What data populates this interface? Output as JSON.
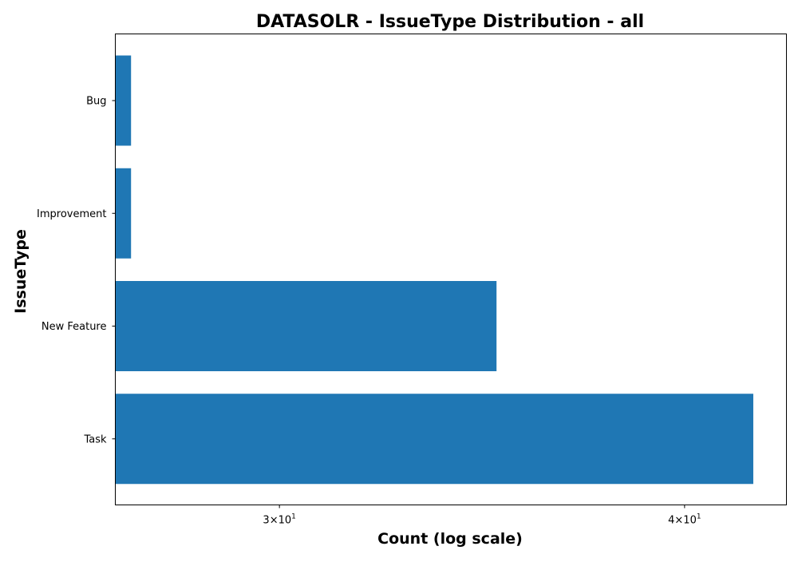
{
  "chart_data": {
    "type": "bar",
    "orientation": "horizontal",
    "title": "DATASOLR - IssueType Distribution - all",
    "xlabel": "Count (log scale)",
    "ylabel": "IssueType",
    "x_scale": "log",
    "xlim": [
      26.7,
      43.0
    ],
    "categories": [
      "Bug",
      "Improvement",
      "New Feature",
      "Task"
    ],
    "values": [
      27,
      27,
      35,
      42
    ],
    "bar_color": "#1f77b4",
    "x_ticks": [
      {
        "value": 30,
        "base": "3",
        "exp": "1"
      },
      {
        "value": 40,
        "base": "4",
        "exp": "1"
      }
    ],
    "grid": false,
    "legend": "none"
  }
}
